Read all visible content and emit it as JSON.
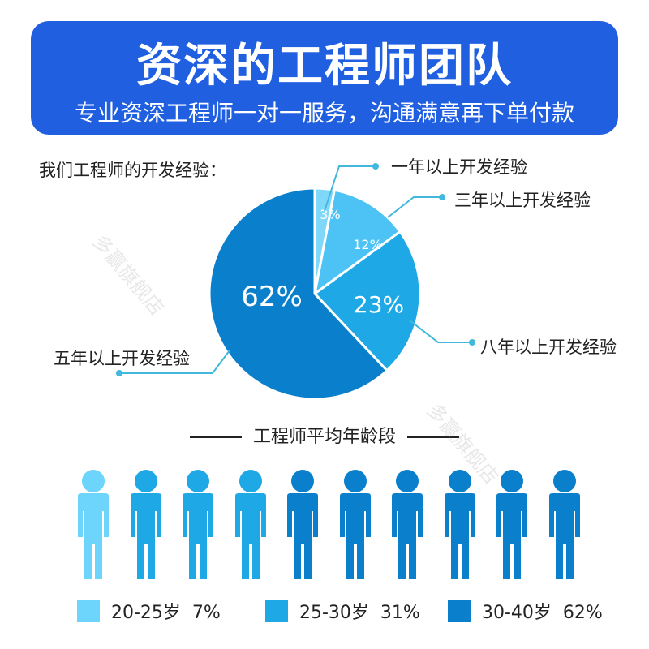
{
  "banner": {
    "title": "资深的工程师团队",
    "subtitle": "专业资深工程师一对一服务，沟通满意再下单付款"
  },
  "experience_label": "我们工程师的开发经验：",
  "age_heading": "工程师平均年龄段",
  "legend": [
    {
      "label": "20-25岁  7%",
      "color": "#6dd4fb"
    },
    {
      "label": "25-30岁  31%",
      "color": "#1ea8e6"
    },
    {
      "label": "30-40岁  62%",
      "color": "#0a7fcc"
    }
  ],
  "watermark": "多赢旗舰店",
  "colors": {
    "banner": "#1f5fe0",
    "slice_light": "#7fd8fa",
    "slice_mid": "#4cc3f4",
    "slice_blue": "#1ea8e6",
    "slice_dark": "#0a7fcc",
    "callout": "#42b8dc"
  },
  "chart_data": [
    {
      "type": "pie",
      "title": "我们工程师的开发经验：",
      "slices": [
        {
          "label": "一年以上开发经验",
          "value": 3,
          "value_label": "3%",
          "color": "#7fd8fa"
        },
        {
          "label": "三年以上开发经验",
          "value": 12,
          "value_label": "12%",
          "color": "#4cc3f4"
        },
        {
          "label": "八年以上开发经验",
          "value": 23,
          "value_label": "23%",
          "color": "#1ea8e6"
        },
        {
          "label": "五年以上开发经验",
          "value": 62,
          "value_label": "62%",
          "color": "#0a7fcc"
        }
      ]
    },
    {
      "type": "bar",
      "title": "工程师平均年龄段",
      "categories": [
        "20-25岁",
        "25-30岁",
        "30-40岁"
      ],
      "values": [
        7,
        31,
        62
      ],
      "unit": "%"
    }
  ]
}
